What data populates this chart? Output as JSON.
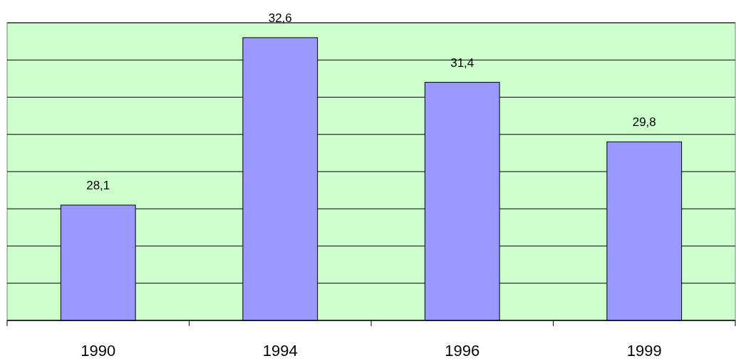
{
  "chart_data": {
    "type": "bar",
    "categories": [
      "1990",
      "1994",
      "1996",
      "1999"
    ],
    "values": [
      28.1,
      32.6,
      31.4,
      29.8
    ],
    "value_labels": [
      "28,1",
      "32,6",
      "31,4",
      "29,8"
    ],
    "color": "#9999ff",
    "ylim": [
      25,
      33
    ],
    "yticks": [
      {
        "value": 25,
        "label": null
      },
      {
        "value": 26,
        "label": null
      },
      {
        "value": 27,
        "label": null
      },
      {
        "value": 28,
        "label": null
      },
      {
        "value": 29,
        "label": null
      },
      {
        "value": 30,
        "label": null
      },
      {
        "value": 31,
        "label": null
      },
      {
        "value": 32,
        "label": null
      },
      {
        "value": 33,
        "label": null
      }
    ],
    "grid": "y",
    "tick_labels": "x"
  }
}
